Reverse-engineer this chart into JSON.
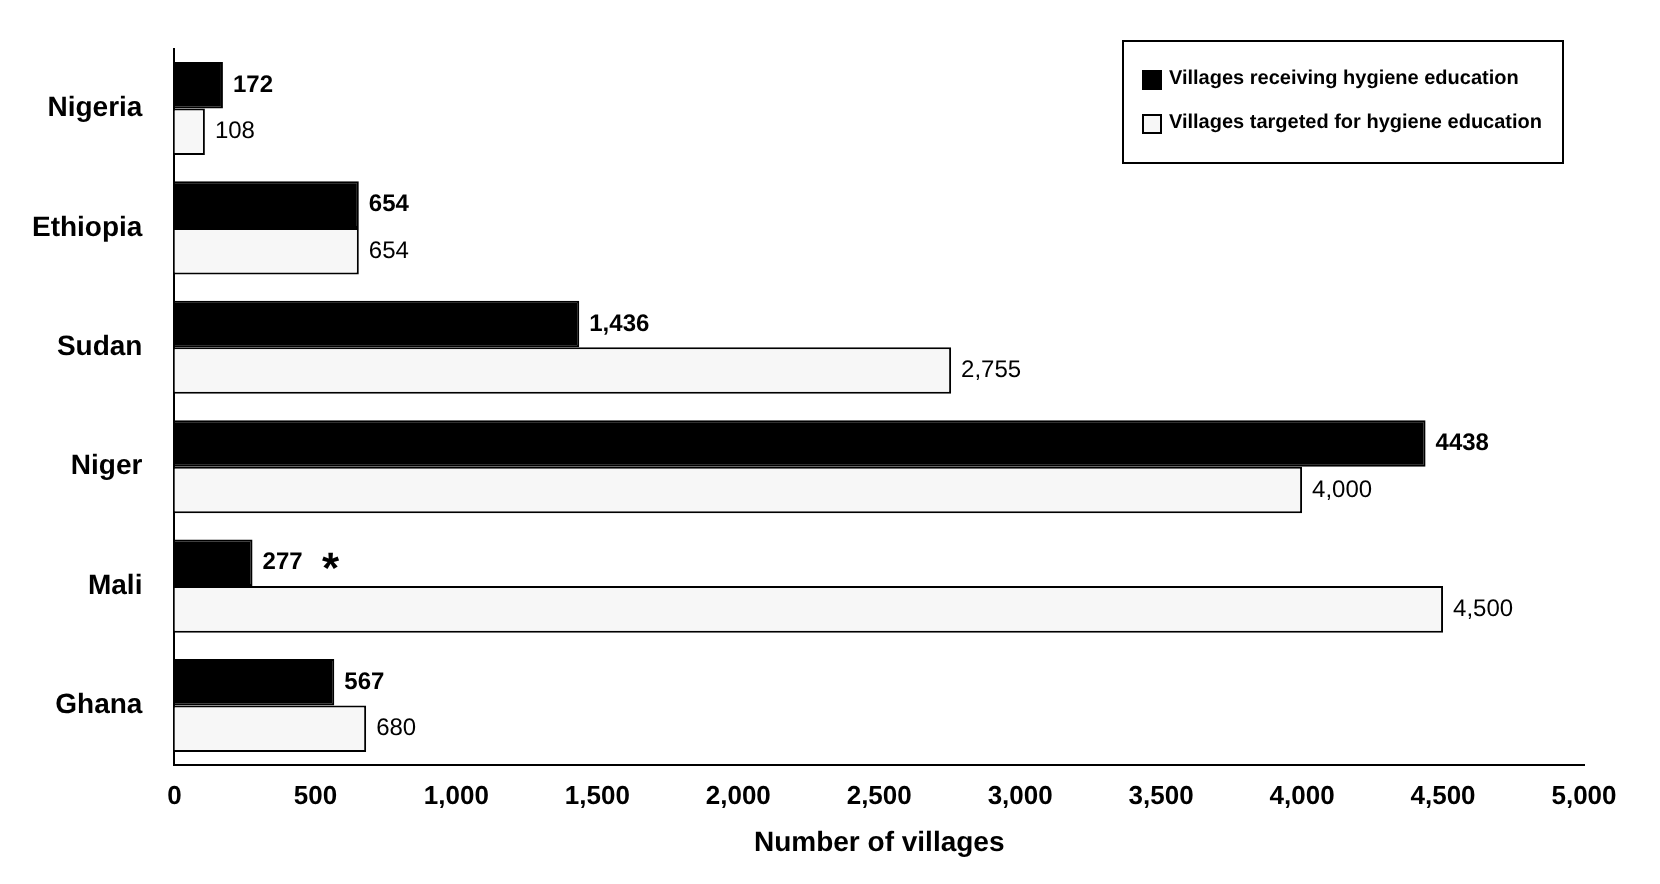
{
  "chart_data": {
    "type": "bar",
    "orientation": "horizontal",
    "xlabel": "Number of villages",
    "categories": [
      "Nigeria",
      "Ethiopia",
      "Sudan",
      "Niger",
      "Mali",
      "Ghana"
    ],
    "series": [
      {
        "name": "Villages receiving hygiene education",
        "color": "#000000",
        "values": [
          172,
          654,
          1436,
          4438,
          277,
          567
        ],
        "value_labels": [
          "172",
          "654",
          "1,436",
          "4438",
          "277",
          "567"
        ]
      },
      {
        "name": "Villages targeted for hygiene education",
        "color": "#f7f7f7",
        "values": [
          108,
          654,
          2755,
          4000,
          4500,
          680
        ],
        "value_labels": [
          "108",
          "654",
          "2,755",
          "4,000",
          "4,500",
          "680"
        ]
      }
    ],
    "xlim": [
      0,
      5000
    ],
    "xticks": [
      0,
      500,
      {
        "value": 1000,
        "label": "1,000"
      },
      {
        "value": 1500,
        "label": "1,500"
      },
      {
        "value": 2000,
        "label": "2,000"
      },
      {
        "value": 2500,
        "label": "2,500"
      },
      {
        "value": 3000,
        "label": "3,000"
      },
      {
        "value": 3500,
        "label": "3,500"
      },
      {
        "value": 4000,
        "label": "4,000"
      },
      {
        "value": 4500,
        "label": "4,500"
      },
      {
        "value": 5000,
        "label": "5,000"
      }
    ],
    "annotations": [
      {
        "text": "*",
        "x": 277,
        "y": "Mali"
      }
    ],
    "grid": false,
    "legend": "top right"
  }
}
